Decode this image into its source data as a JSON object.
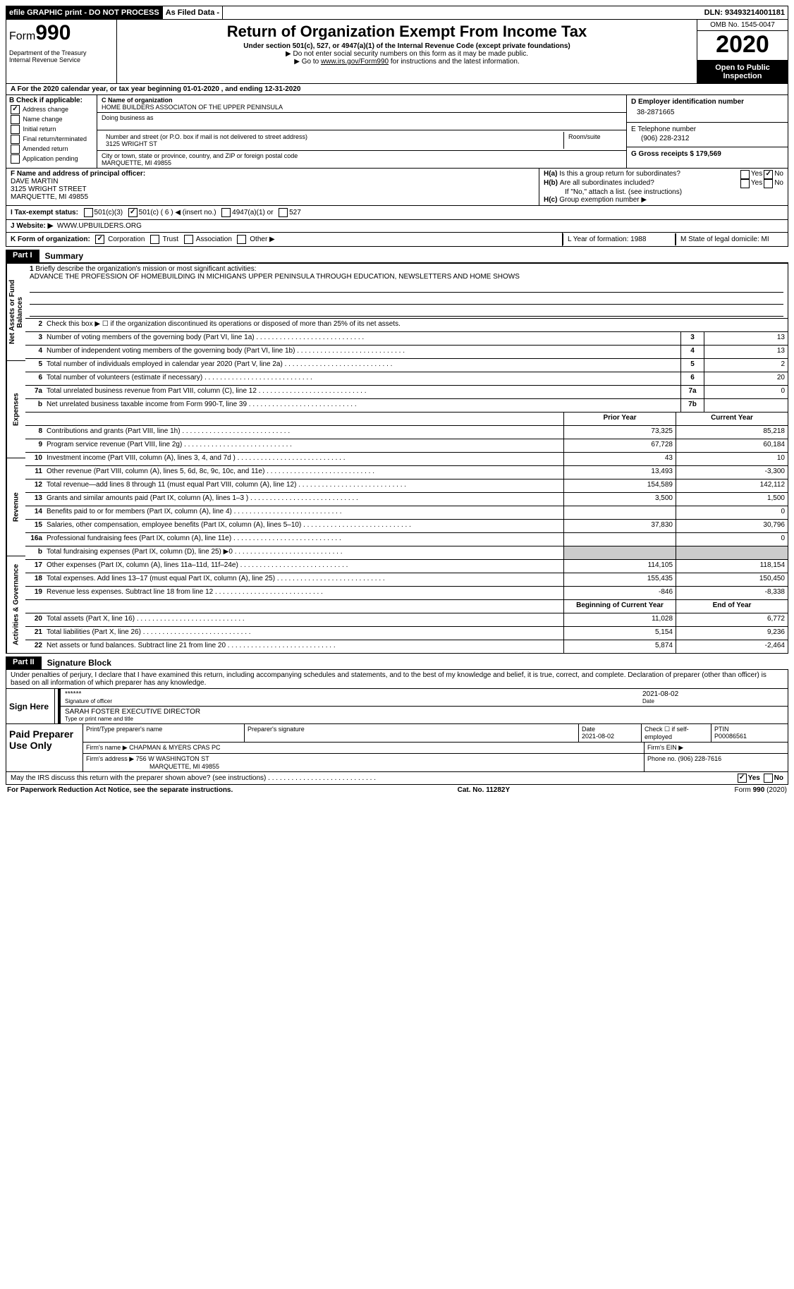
{
  "topbar": {
    "efile": "efile GRAPHIC print - DO NOT PROCESS",
    "asfiled": "As Filed Data -",
    "dln": "DLN: 93493214001181"
  },
  "header": {
    "form_label": "Form",
    "form_no": "990",
    "dept": "Department of the Treasury\nInternal Revenue Service",
    "title": "Return of Organization Exempt From Income Tax",
    "sub1": "Under section 501(c), 527, or 4947(a)(1) of the Internal Revenue Code (except private foundations)",
    "sub2": "▶ Do not enter social security numbers on this form as it may be made public.",
    "sub3_pre": "▶ Go to ",
    "sub3_link": "www.irs.gov/Form990",
    "sub3_post": " for instructions and the latest information.",
    "omb": "OMB No. 1545-0047",
    "year": "2020",
    "open": "Open to Public Inspection"
  },
  "rowA": "A   For the 2020 calendar year, or tax year beginning 01-01-2020   , and ending 12-31-2020",
  "b": {
    "hdr": "B Check if applicable:",
    "i1": "Address change",
    "i2": "Name change",
    "i3": "Initial return",
    "i4": "Final return/terminated",
    "i5": "Amended return",
    "i6": "Application pending"
  },
  "c": {
    "lbl_name": "C Name of organization",
    "name": "HOME BUILDERS ASSOCIATON OF THE UPPER PENINSULA",
    "lbl_dba": "Doing business as",
    "lbl_street": "Number and street (or P.O. box if mail is not delivered to street address)",
    "street": "3125 WRIGHT ST",
    "lbl_room": "Room/suite",
    "lbl_city": "City or town, state or province, country, and ZIP or foreign postal code",
    "city": "MARQUETTE, MI  49855"
  },
  "d": {
    "lbl_ein": "D Employer identification number",
    "ein": "38-2871665",
    "lbl_tel": "E Telephone number",
    "tel": "(906) 228-2312",
    "lbl_gross": "G Gross receipts $ 179,569"
  },
  "f": {
    "lbl": "F  Name and address of principal officer:",
    "l1": "DAVE MARTIN",
    "l2": "3125 WRIGHT STREET",
    "l3": "MARQUETTE, MI  49855"
  },
  "h": {
    "a": "Is this a group return for subordinates?",
    "b": "Are all subordinates included?",
    "note": "If \"No,\" attach a list. (see instructions)",
    "c": "Group exemption number ▶"
  },
  "i": {
    "lbl": "I   Tax-exempt status:",
    "o1": "501(c)(3)",
    "o2": "501(c) ( 6 ) ◀ (insert no.)",
    "o3": "4947(a)(1) or",
    "o4": "527"
  },
  "j": {
    "lbl": "J   Website: ▶",
    "val": "WWW.UPBUILDERS.ORG"
  },
  "k": {
    "lbl": "K Form of organization:",
    "o1": "Corporation",
    "o2": "Trust",
    "o3": "Association",
    "o4": "Other ▶"
  },
  "l": {
    "lbl": "L Year of formation: 1988"
  },
  "m": {
    "lbl": "M State of legal domicile: MI"
  },
  "part1": {
    "tag": "Part I",
    "title": "Summary"
  },
  "vtabs": [
    "Activities & Governance",
    "Revenue",
    "Expenses",
    "Net Assets or Fund Balances"
  ],
  "s1": {
    "lbl": "Briefly describe the organization's mission or most significant activities:",
    "val": "ADVANCE THE PROFESSION OF HOMEBUILDING IN MICHIGANS UPPER PENINSULA THROUGH EDUCATION, NEWSLETTERS AND HOME SHOWS"
  },
  "s2": "Check this box ▶ ☐ if the organization discontinued its operations or disposed of more than 25% of its net assets.",
  "lines_top": [
    {
      "n": "3",
      "t": "Number of voting members of the governing body (Part VI, line 1a)",
      "box": "3",
      "v": "13"
    },
    {
      "n": "4",
      "t": "Number of independent voting members of the governing body (Part VI, line 1b)",
      "box": "4",
      "v": "13"
    },
    {
      "n": "5",
      "t": "Total number of individuals employed in calendar year 2020 (Part V, line 2a)",
      "box": "5",
      "v": "2"
    },
    {
      "n": "6",
      "t": "Total number of volunteers (estimate if necessary)",
      "box": "6",
      "v": "20"
    },
    {
      "n": "7a",
      "t": "Total unrelated business revenue from Part VIII, column (C), line 12",
      "box": "7a",
      "v": "0"
    },
    {
      "n": "b",
      "t": "Net unrelated business taxable income from Form 990-T, line 39",
      "box": "7b",
      "v": ""
    }
  ],
  "col_hdr": {
    "py": "Prior Year",
    "cy": "Current Year",
    "boy": "Beginning of Current Year",
    "eoy": "End of Year"
  },
  "lines_rev": [
    {
      "n": "8",
      "t": "Contributions and grants (Part VIII, line 1h)",
      "py": "73,325",
      "cy": "85,218"
    },
    {
      "n": "9",
      "t": "Program service revenue (Part VIII, line 2g)",
      "py": "67,728",
      "cy": "60,184"
    },
    {
      "n": "10",
      "t": "Investment income (Part VIII, column (A), lines 3, 4, and 7d )",
      "py": "43",
      "cy": "10"
    },
    {
      "n": "11",
      "t": "Other revenue (Part VIII, column (A), lines 5, 6d, 8c, 9c, 10c, and 11e)",
      "py": "13,493",
      "cy": "-3,300"
    },
    {
      "n": "12",
      "t": "Total revenue—add lines 8 through 11 (must equal Part VIII, column (A), line 12)",
      "py": "154,589",
      "cy": "142,112"
    }
  ],
  "lines_exp": [
    {
      "n": "13",
      "t": "Grants and similar amounts paid (Part IX, column (A), lines 1–3 )",
      "py": "3,500",
      "cy": "1,500"
    },
    {
      "n": "14",
      "t": "Benefits paid to or for members (Part IX, column (A), line 4)",
      "py": "",
      "cy": "0"
    },
    {
      "n": "15",
      "t": "Salaries, other compensation, employee benefits (Part IX, column (A), lines 5–10)",
      "py": "37,830",
      "cy": "30,796"
    },
    {
      "n": "16a",
      "t": "Professional fundraising fees (Part IX, column (A), line 11e)",
      "py": "",
      "cy": "0"
    },
    {
      "n": "b",
      "t": "Total fundraising expenses (Part IX, column (D), line 25) ▶0",
      "py": "",
      "cy": "",
      "shade": true
    },
    {
      "n": "17",
      "t": "Other expenses (Part IX, column (A), lines 11a–11d, 11f–24e)",
      "py": "114,105",
      "cy": "118,154"
    },
    {
      "n": "18",
      "t": "Total expenses. Add lines 13–17 (must equal Part IX, column (A), line 25)",
      "py": "155,435",
      "cy": "150,450"
    },
    {
      "n": "19",
      "t": "Revenue less expenses. Subtract line 18 from line 12",
      "py": "-846",
      "cy": "-8,338"
    }
  ],
  "lines_net": [
    {
      "n": "20",
      "t": "Total assets (Part X, line 16)",
      "py": "11,028",
      "cy": "6,772"
    },
    {
      "n": "21",
      "t": "Total liabilities (Part X, line 26)",
      "py": "5,154",
      "cy": "9,236"
    },
    {
      "n": "22",
      "t": "Net assets or fund balances. Subtract line 21 from line 20",
      "py": "5,874",
      "cy": "-2,464"
    }
  ],
  "part2": {
    "tag": "Part II",
    "title": "Signature Block"
  },
  "sig": {
    "declare": "Under penalties of perjury, I declare that I have examined this return, including accompanying schedules and statements, and to the best of my knowledge and belief, it is true, correct, and complete. Declaration of preparer (other than officer) is based on all information of which preparer has any knowledge.",
    "sign_here": "Sign Here",
    "stars": "******",
    "sig_of": "Signature of officer",
    "date": "2021-08-02",
    "date_lbl": "Date",
    "name": "SARAH FOSTER  EXECUTIVE DIRECTOR",
    "name_lbl": "Type or print name and title"
  },
  "prep": {
    "lbl": "Paid Preparer Use Only",
    "h1": "Print/Type preparer's name",
    "h2": "Preparer's signature",
    "h3": "Date",
    "h3v": "2021-08-02",
    "h4": "Check ☐ if self-employed",
    "h5": "PTIN",
    "h5v": "P00086561",
    "firm_lbl": "Firm's name      ▶",
    "firm": "CHAPMAN & MYERS CPAS PC",
    "ein_lbl": "Firm's EIN ▶",
    "addr_lbl": "Firm's address ▶",
    "addr1": "756 W WASHINGTON ST",
    "addr2": "MARQUETTE, MI  49855",
    "phone_lbl": "Phone no. (906) 228-7616"
  },
  "discuss": "May the IRS discuss this return with the preparer shown above? (see instructions)",
  "footer": {
    "l": "For Paperwork Reduction Act Notice, see the separate instructions.",
    "c": "Cat. No. 11282Y",
    "r": "Form 990 (2020)"
  }
}
